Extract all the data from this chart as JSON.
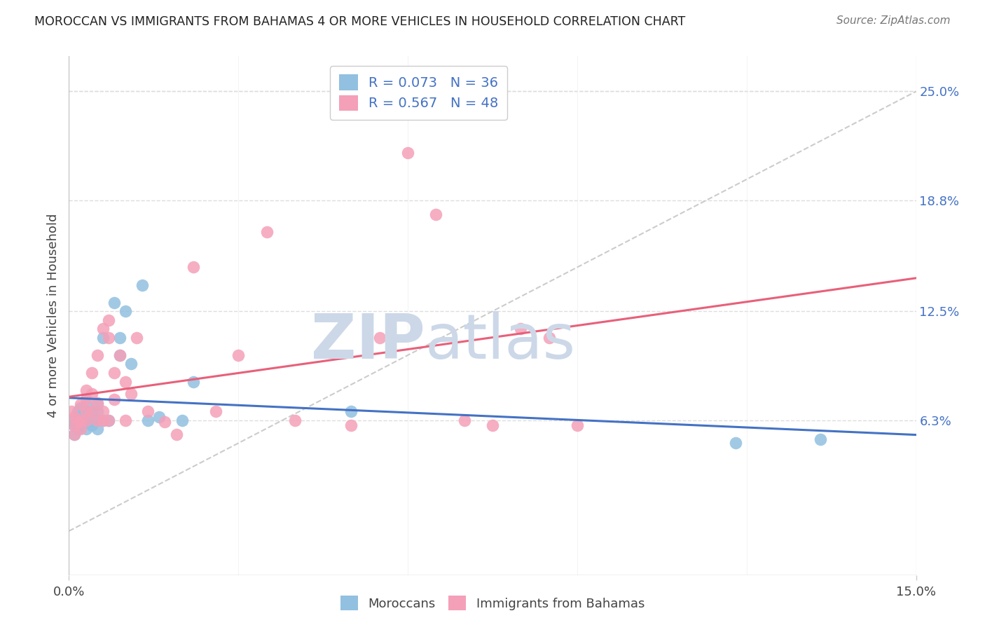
{
  "title": "MOROCCAN VS IMMIGRANTS FROM BAHAMAS 4 OR MORE VEHICLES IN HOUSEHOLD CORRELATION CHART",
  "source": "Source: ZipAtlas.com",
  "ylabel": "4 or more Vehicles in Household",
  "xlim": [
    0.0,
    0.15
  ],
  "ylim": [
    -0.025,
    0.27
  ],
  "ytick_right_vals": [
    0.063,
    0.125,
    0.188,
    0.25
  ],
  "ytick_right_labels": [
    "6.3%",
    "12.5%",
    "18.8%",
    "25.0%"
  ],
  "legend_r_blue": "0.073",
  "legend_n_blue": "36",
  "legend_r_pink": "0.567",
  "legend_n_pink": "48",
  "moroccans_x": [
    0.0005,
    0.001,
    0.001,
    0.0015,
    0.0015,
    0.002,
    0.002,
    0.002,
    0.002,
    0.003,
    0.003,
    0.003,
    0.003,
    0.004,
    0.004,
    0.004,
    0.005,
    0.005,
    0.005,
    0.005,
    0.006,
    0.006,
    0.007,
    0.008,
    0.009,
    0.009,
    0.01,
    0.011,
    0.013,
    0.014,
    0.016,
    0.02,
    0.022,
    0.05,
    0.118,
    0.133
  ],
  "moroccans_y": [
    0.063,
    0.055,
    0.06,
    0.058,
    0.068,
    0.06,
    0.062,
    0.065,
    0.07,
    0.058,
    0.063,
    0.068,
    0.072,
    0.063,
    0.068,
    0.06,
    0.058,
    0.063,
    0.068,
    0.072,
    0.11,
    0.063,
    0.063,
    0.13,
    0.1,
    0.11,
    0.125,
    0.095,
    0.14,
    0.063,
    0.065,
    0.063,
    0.085,
    0.068,
    0.05,
    0.052
  ],
  "bahamas_x": [
    0.0005,
    0.001,
    0.001,
    0.001,
    0.0015,
    0.002,
    0.002,
    0.002,
    0.003,
    0.003,
    0.003,
    0.003,
    0.004,
    0.004,
    0.004,
    0.005,
    0.005,
    0.005,
    0.006,
    0.006,
    0.006,
    0.007,
    0.007,
    0.007,
    0.008,
    0.008,
    0.009,
    0.01,
    0.01,
    0.011,
    0.012,
    0.014,
    0.017,
    0.019,
    0.022,
    0.026,
    0.03,
    0.035,
    0.04,
    0.05,
    0.055,
    0.06,
    0.065,
    0.07,
    0.075,
    0.08,
    0.085,
    0.09
  ],
  "bahamas_y": [
    0.068,
    0.055,
    0.06,
    0.065,
    0.062,
    0.063,
    0.058,
    0.072,
    0.063,
    0.068,
    0.075,
    0.08,
    0.068,
    0.078,
    0.09,
    0.063,
    0.073,
    0.1,
    0.063,
    0.115,
    0.068,
    0.063,
    0.11,
    0.12,
    0.075,
    0.09,
    0.1,
    0.085,
    0.063,
    0.078,
    0.11,
    0.068,
    0.062,
    0.055,
    0.15,
    0.068,
    0.1,
    0.17,
    0.063,
    0.06,
    0.11,
    0.215,
    0.18,
    0.063,
    0.06,
    0.115,
    0.11,
    0.06
  ],
  "blue_color": "#92c0e0",
  "pink_color": "#f4a0b8",
  "blue_line_color": "#4472c4",
  "pink_line_color": "#e8607a",
  "diagonal_color": "#cccccc",
  "background_color": "#ffffff",
  "grid_color": "#dddddd",
  "watermark_zip": "ZIP",
  "watermark_atlas": "atlas",
  "watermark_color": "#ccd8e8"
}
